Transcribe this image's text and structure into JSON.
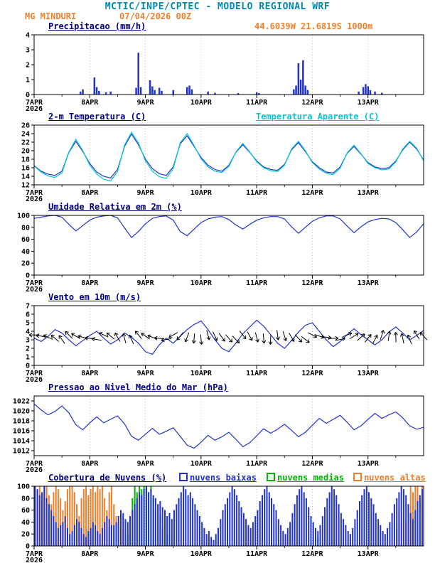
{
  "header": {
    "title": "MCTIC/INPE/CPTEC - MODELO REGIONAL WRF",
    "station": "MG MINDURI",
    "run": "07/04/2026 00Z"
  },
  "colors": {
    "teal_title": "#0088b0",
    "orange": "#ee7f2d",
    "navy": "#000080",
    "line_blue": "#2233cc",
    "cyan": "#00c8d0",
    "green": "#00b400",
    "black": "#000000"
  },
  "x_axis": {
    "total_hours": 168,
    "day_labels": [
      "7APR",
      "8APR",
      "9APR",
      "10APR",
      "11APR",
      "12APR",
      "13APR"
    ],
    "year_label": "2026"
  },
  "chart_data": [
    {
      "type": "bar",
      "title": "Precipitacao (mm/h)",
      "right_label": "44.6039W 21.6819S 1000m",
      "ylim": [
        0,
        4
      ],
      "yticks": [
        0,
        1,
        2,
        3,
        4
      ],
      "color": "#2233cc",
      "points_hour_value": [
        [
          20,
          0.2
        ],
        [
          21,
          0.35
        ],
        [
          26,
          1.15
        ],
        [
          27,
          0.5
        ],
        [
          28,
          0.25
        ],
        [
          31,
          0.15
        ],
        [
          33,
          0.2
        ],
        [
          44,
          0.45
        ],
        [
          45,
          2.8
        ],
        [
          46,
          0.5
        ],
        [
          50,
          0.95
        ],
        [
          51,
          0.55
        ],
        [
          52,
          0.3
        ],
        [
          54,
          0.45
        ],
        [
          55,
          0.25
        ],
        [
          60,
          0.3
        ],
        [
          66,
          0.5
        ],
        [
          67,
          0.6
        ],
        [
          68,
          0.35
        ],
        [
          75,
          0.2
        ],
        [
          78,
          0.12
        ],
        [
          88,
          0.1
        ],
        [
          96,
          0.15
        ],
        [
          97,
          0.1
        ],
        [
          112,
          0.35
        ],
        [
          113,
          0.6
        ],
        [
          114,
          2.1
        ],
        [
          115,
          1.0
        ],
        [
          116,
          2.3
        ],
        [
          117,
          0.6
        ],
        [
          118,
          0.3
        ],
        [
          140,
          0.2
        ],
        [
          142,
          0.5
        ],
        [
          143,
          0.7
        ],
        [
          144,
          0.55
        ],
        [
          145,
          0.3
        ],
        [
          147,
          0.2
        ],
        [
          150,
          0.12
        ]
      ]
    },
    {
      "type": "line",
      "title": "2-m Temperatura (C)",
      "right_label": "Temperatura Aparente (C)",
      "ylim": [
        12,
        26
      ],
      "yticks": [
        12,
        14,
        16,
        18,
        20,
        22,
        24,
        26
      ],
      "step_hours": 3,
      "series": [
        {
          "name": "2-m Temperatura (C)",
          "color": "#2233cc",
          "values": [
            16.5,
            15.2,
            14.5,
            14.2,
            15.2,
            19.6,
            22.2,
            19.8,
            17.0,
            15.0,
            14.0,
            13.6,
            15.6,
            21.0,
            23.9,
            21.4,
            18.0,
            15.8,
            14.6,
            14.2,
            16.2,
            21.6,
            23.5,
            21.0,
            18.4,
            16.6,
            15.6,
            15.2,
            16.6,
            19.6,
            21.4,
            19.6,
            17.6,
            16.2,
            15.6,
            15.4,
            16.8,
            20.2,
            21.9,
            19.8,
            17.4,
            16.0,
            15.0,
            14.8,
            16.2,
            19.4,
            21.0,
            19.2,
            17.2,
            16.2,
            15.8,
            16.0,
            17.6,
            20.2,
            22.0,
            20.4,
            17.8
          ]
        },
        {
          "name": "Temperatura Aparente (C)",
          "color": "#00c8d0",
          "values": [
            16.4,
            15.0,
            14.1,
            13.7,
            14.8,
            19.7,
            22.7,
            20.0,
            16.6,
            14.5,
            13.3,
            12.9,
            15.1,
            21.3,
            24.3,
            21.8,
            17.6,
            15.2,
            13.9,
            13.5,
            15.8,
            21.9,
            24.0,
            21.2,
            18.1,
            16.2,
            15.2,
            14.9,
            16.3,
            19.7,
            21.7,
            19.7,
            17.4,
            16.0,
            15.3,
            15.1,
            16.6,
            20.4,
            22.2,
            20.0,
            17.2,
            15.7,
            14.7,
            14.4,
            15.9,
            19.5,
            21.3,
            19.3,
            17.0,
            16.0,
            15.5,
            15.7,
            17.4,
            20.4,
            22.2,
            20.6,
            17.6
          ]
        }
      ]
    },
    {
      "type": "line",
      "title": "Umidade Relativa em 2m (%)",
      "ylim": [
        0,
        100
      ],
      "yticks": [
        0,
        20,
        40,
        60,
        80,
        100
      ],
      "step_hours": 3,
      "series": [
        {
          "name": "Umidade Relativa em 2m (%)",
          "color": "#2233cc",
          "values": [
            95,
            97,
            99,
            100,
            97,
            85,
            74,
            83,
            92,
            97,
            99,
            100,
            96,
            79,
            63,
            73,
            86,
            95,
            98,
            99,
            92,
            73,
            66,
            77,
            88,
            94,
            97,
            98,
            93,
            84,
            77,
            85,
            92,
            96,
            98,
            98,
            94,
            81,
            70,
            80,
            90,
            96,
            99,
            99,
            94,
            82,
            71,
            81,
            89,
            93,
            95,
            94,
            88,
            76,
            63,
            72,
            86
          ]
        }
      ]
    },
    {
      "type": "line",
      "title": "Vento em 10m (m/s)",
      "ylim": [
        0,
        7
      ],
      "yticks": [
        0,
        1,
        2,
        3,
        4,
        5,
        6,
        7
      ],
      "step_hours": 3,
      "series": [
        {
          "name": "Vento em 10m (m/s)",
          "color": "#2233cc",
          "values": [
            3.2,
            2.8,
            3.4,
            4.2,
            3.8,
            3.0,
            2.3,
            2.9,
            3.5,
            4.0,
            3.2,
            2.5,
            3.0,
            3.8,
            3.3,
            2.6,
            1.6,
            1.3,
            2.4,
            3.2,
            2.6,
            3.4,
            4.2,
            4.8,
            5.2,
            4.2,
            3.0,
            2.0,
            1.6,
            2.6,
            3.7,
            4.5,
            5.3,
            4.6,
            3.6,
            2.6,
            2.0,
            2.9,
            3.9,
            4.7,
            5.0,
            4.0,
            3.0,
            2.2,
            2.8,
            3.6,
            4.3,
            3.6,
            3.0,
            2.4,
            3.0,
            3.9,
            4.5,
            3.8,
            3.0,
            3.5,
            4.1
          ]
        }
      ],
      "arrows": {
        "y_value": 3.3,
        "step_hours": 3,
        "rot_deg": [
          180,
          190,
          205,
          220,
          235,
          225,
          210,
          195,
          185,
          190,
          205,
          220,
          240,
          255,
          245,
          230,
          215,
          200,
          185,
          170,
          150,
          130,
          110,
          95,
          85,
          75,
          65,
          55,
          48,
          45,
          52,
          62,
          75,
          85,
          92,
          82,
          72,
          60,
          48,
          38,
          28,
          18,
          8,
          358,
          348,
          338,
          328,
          318,
          308,
          298,
          288,
          278,
          268,
          258,
          248,
          238,
          228
        ]
      }
    },
    {
      "type": "line",
      "title": "Pressao ao Nivel Medio do Mar (hPa)",
      "ylim": [
        1011,
        1023
      ],
      "yticks": [
        1012,
        1014,
        1016,
        1018,
        1020,
        1022
      ],
      "step_hours": 3,
      "series": [
        {
          "name": "Pressao ao Nivel Medio do Mar (hPa)",
          "color": "#2233cc",
          "values": [
            1021.4,
            1020.2,
            1019.2,
            1019.9,
            1021.0,
            1019.6,
            1017.2,
            1016.2,
            1017.6,
            1018.8,
            1017.6,
            1018.3,
            1019.0,
            1017.4,
            1014.9,
            1014.1,
            1015.3,
            1016.5,
            1015.3,
            1015.9,
            1016.6,
            1014.9,
            1013.1,
            1012.5,
            1013.7,
            1015.1,
            1014.1,
            1014.8,
            1015.7,
            1014.3,
            1012.8,
            1013.6,
            1015.0,
            1016.4,
            1015.5,
            1016.3,
            1017.3,
            1016.1,
            1014.8,
            1015.7,
            1017.1,
            1018.5,
            1017.5,
            1018.3,
            1019.1,
            1017.7,
            1016.2,
            1017.0,
            1018.3,
            1019.5,
            1018.5,
            1019.2,
            1019.8,
            1018.6,
            1017.0,
            1016.3,
            1016.7
          ]
        }
      ]
    },
    {
      "type": "bars",
      "title": "Cobertura de Nuvens (%)",
      "ylim": [
        0,
        100
      ],
      "yticks": [
        0,
        20,
        40,
        60,
        80,
        100
      ],
      "step_hours": 1,
      "legend": [
        {
          "label": "nuvens baixas",
          "color": "#2233cc"
        },
        {
          "label": "nuvens medias",
          "color": "#00b400"
        },
        {
          "label": "nuvens altas",
          "color": "#ee7f2d"
        }
      ],
      "series": [
        {
          "name": "nuvens altas",
          "color": "#ee7f2d",
          "values": [
            100,
            95,
            100,
            90,
            100,
            100,
            85,
            70,
            90,
            100,
            95,
            80,
            60,
            75,
            95,
            100,
            100,
            90,
            70,
            50,
            80,
            95,
            100,
            85,
            95,
            100,
            90,
            100,
            95,
            100,
            80,
            60,
            90,
            100,
            70,
            50,
            40,
            60,
            30,
            20,
            10,
            5,
            0,
            0,
            0,
            0,
            0,
            0,
            0,
            0,
            0,
            0,
            0,
            0,
            0,
            0,
            0,
            0,
            0,
            0,
            0,
            0,
            0,
            0,
            0,
            0,
            0,
            0,
            0,
            0,
            0,
            0,
            0,
            0,
            0,
            0,
            0,
            0,
            0,
            0,
            0,
            0,
            0,
            0,
            0,
            0,
            0,
            0,
            0,
            0,
            0,
            0,
            0,
            0,
            0,
            0,
            0,
            0,
            0,
            0,
            0,
            0,
            0,
            0,
            0,
            0,
            0,
            0,
            0,
            0,
            0,
            0,
            0,
            0,
            0,
            0,
            0,
            0,
            0,
            0,
            0,
            0,
            0,
            0,
            0,
            0,
            0,
            0,
            0,
            0,
            0,
            0,
            0,
            0,
            0,
            0,
            0,
            0,
            0,
            0,
            0,
            0,
            0,
            0,
            0,
            0,
            0,
            0,
            0,
            0,
            0,
            0,
            0,
            0,
            0,
            0,
            30,
            60,
            0,
            0,
            40,
            0,
            100,
            90,
            100,
            100,
            80,
            100
          ]
        },
        {
          "name": "nuvens medias",
          "color": "#00b400",
          "values": [
            0,
            0,
            0,
            0,
            0,
            0,
            0,
            0,
            0,
            0,
            0,
            0,
            0,
            0,
            0,
            0,
            0,
            0,
            0,
            0,
            0,
            0,
            0,
            0,
            0,
            0,
            0,
            0,
            0,
            0,
            0,
            0,
            0,
            0,
            0,
            0,
            0,
            0,
            0,
            0,
            20,
            50,
            80,
            100,
            90,
            100,
            95,
            100,
            100,
            90,
            100,
            80,
            60,
            70,
            50,
            30,
            40,
            20,
            10,
            5,
            0,
            0,
            0,
            0,
            0,
            0,
            0,
            0,
            0,
            0,
            0,
            0,
            0,
            0,
            0,
            0,
            0,
            0,
            0,
            0,
            0,
            0,
            0,
            0,
            0,
            0,
            0,
            0,
            0,
            0,
            0,
            0,
            0,
            0,
            0,
            0,
            0,
            0,
            0,
            0,
            0,
            0,
            0,
            0,
            0,
            0,
            0,
            0,
            0,
            0,
            0,
            0,
            0,
            0,
            0,
            0,
            0,
            0,
            0,
            0,
            0,
            0,
            15,
            0,
            0,
            0,
            0,
            0,
            0,
            0,
            0,
            0,
            0,
            0,
            0,
            0,
            0,
            0,
            0,
            0,
            0,
            0,
            0,
            0,
            0,
            0,
            0,
            0,
            0,
            0,
            0,
            0,
            0,
            0,
            0,
            0,
            0,
            0,
            0,
            0,
            0,
            0,
            0,
            0,
            0,
            0,
            0,
            0
          ]
        },
        {
          "name": "nuvens baixas",
          "color": "#2233cc",
          "values": [
            100,
            95,
            85,
            90,
            100,
            80,
            70,
            60,
            50,
            40,
            30,
            35,
            40,
            50,
            30,
            20,
            25,
            35,
            45,
            40,
            30,
            20,
            15,
            25,
            30,
            40,
            35,
            25,
            20,
            30,
            40,
            50,
            45,
            35,
            35,
            40,
            50,
            60,
            55,
            45,
            40,
            50,
            60,
            70,
            80,
            90,
            85,
            95,
            100,
            90,
            95,
            85,
            80,
            70,
            75,
            65,
            60,
            50,
            55,
            45,
            60,
            70,
            80,
            90,
            100,
            95,
            85,
            90,
            80,
            70,
            60,
            50,
            40,
            30,
            20,
            25,
            15,
            10,
            20,
            30,
            45,
            60,
            70,
            80,
            90,
            100,
            95,
            85,
            75,
            65,
            55,
            45,
            35,
            30,
            40,
            50,
            60,
            75,
            85,
            95,
            100,
            90,
            80,
            70,
            60,
            45,
            35,
            25,
            20,
            30,
            40,
            55,
            70,
            85,
            95,
            100,
            90,
            80,
            65,
            50,
            40,
            30,
            25,
            35,
            50,
            65,
            80,
            90,
            100,
            95,
            85,
            70,
            55,
            45,
            35,
            25,
            20,
            30,
            45,
            60,
            75,
            85,
            95,
            100,
            90,
            80,
            70,
            55,
            45,
            35,
            25,
            20,
            30,
            40,
            55,
            70,
            80,
            90,
            100,
            95,
            85,
            70,
            55,
            45,
            60,
            75,
            85,
            95
          ]
        }
      ]
    }
  ]
}
